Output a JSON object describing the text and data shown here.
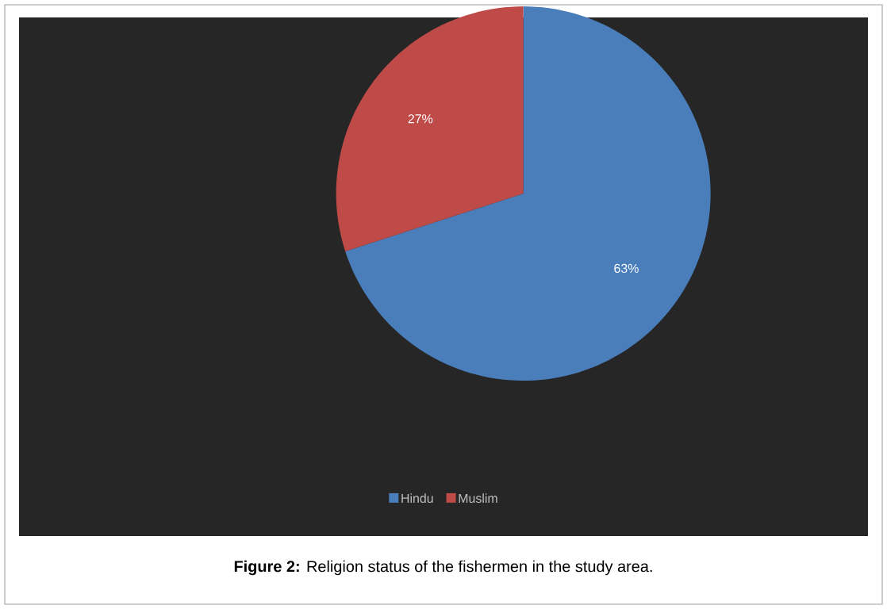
{
  "chart_data": {
    "type": "pie",
    "categories": [
      "Hindu",
      "Muslim"
    ],
    "values": [
      63,
      27
    ],
    "colors": [
      "#4a7ebb",
      "#be4b48"
    ],
    "value_labels": [
      "63%",
      "27%"
    ],
    "legend": "bottom",
    "annotations": [
      "**Figure 2:** Religion status of the fishermen in the study area."
    ]
  }
}
